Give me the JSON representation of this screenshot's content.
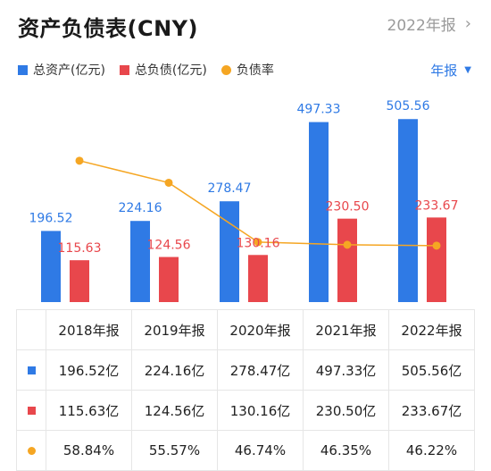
{
  "header": {
    "title": "资产负债表(CNY)",
    "period_label": "2022年报",
    "chevron": "›"
  },
  "legend": [
    {
      "label": "总资产(亿元)",
      "color": "#2f7ae5",
      "shape": "square"
    },
    {
      "label": "总负债(亿元)",
      "color": "#e8474c",
      "shape": "square"
    },
    {
      "label": "负债率",
      "color": "#f5a623",
      "shape": "circle"
    }
  ],
  "period_select": {
    "label": "年报",
    "caret": "▼"
  },
  "chart_data": {
    "type": "bar",
    "categories": [
      "2018年报",
      "2019年报",
      "2020年报",
      "2021年报",
      "2022年报"
    ],
    "series": [
      {
        "name": "总资产(亿元)",
        "type": "bar",
        "color": "#2f7ae5",
        "values": [
          196.52,
          224.16,
          278.47,
          497.33,
          505.56
        ]
      },
      {
        "name": "总负债(亿元)",
        "type": "bar",
        "color": "#e8474c",
        "values": [
          115.63,
          124.56,
          130.16,
          230.5,
          233.67
        ]
      },
      {
        "name": "负债率",
        "type": "line",
        "color": "#f5a623",
        "values": [
          58.84,
          55.57,
          46.74,
          46.35,
          46.22
        ]
      }
    ],
    "bar_labels": {
      "assets": [
        "196.52",
        "224.16",
        "278.47",
        "497.33",
        "505.56"
      ],
      "liabilities": [
        "115.63",
        "124.56",
        "130.16",
        "230.50",
        "233.67"
      ]
    }
  },
  "table": {
    "headers": [
      "2018年报",
      "2019年报",
      "2020年报",
      "2021年报",
      "2022年报"
    ],
    "rows": [
      {
        "color": "#2f7ae5",
        "shape": "square",
        "cells": [
          "196.52亿",
          "224.16亿",
          "278.47亿",
          "497.33亿",
          "505.56亿"
        ]
      },
      {
        "color": "#e8474c",
        "shape": "square",
        "cells": [
          "115.63亿",
          "124.56亿",
          "130.16亿",
          "230.50亿",
          "233.67亿"
        ]
      },
      {
        "color": "#f5a623",
        "shape": "circle",
        "cells": [
          "58.84%",
          "55.57%",
          "46.74%",
          "46.35%",
          "46.22%"
        ]
      }
    ]
  }
}
